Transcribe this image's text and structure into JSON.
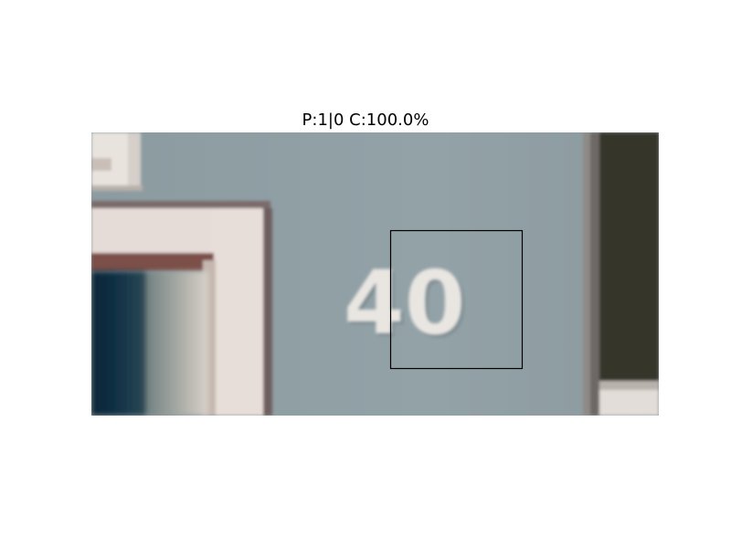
{
  "title": "P:1|0 C:100.0%",
  "photo": {
    "house_number": "40",
    "colors": {
      "wall": "#8f9ea3",
      "trim": "#e6dcd7",
      "door_dark": "#0f2a3a",
      "digit": "#e9e6e2",
      "frame": "#000000"
    }
  }
}
